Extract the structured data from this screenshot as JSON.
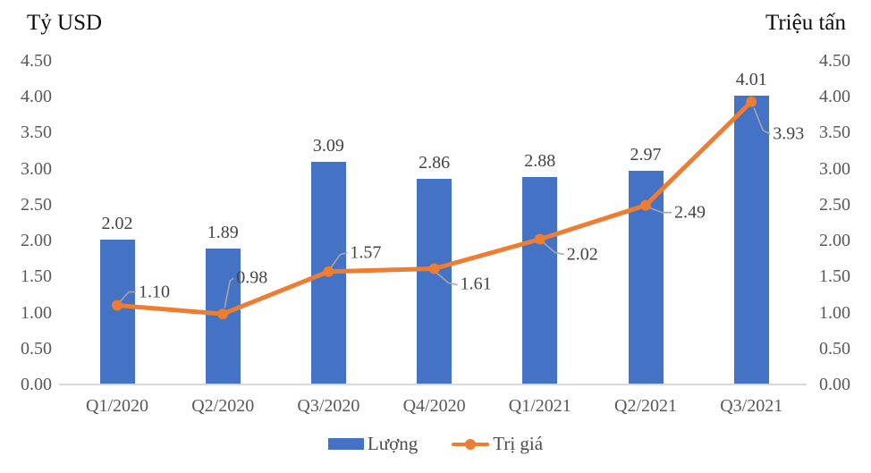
{
  "chart_data": {
    "type": "combo-bar-line",
    "title": "",
    "left_axis_title": "Tỷ USD",
    "right_axis_title": "Triệu tấn",
    "categories": [
      "Q1/2020",
      "Q2/2020",
      "Q3/2020",
      "Q4/2020",
      "Q1/2021",
      "Q2/2021",
      "Q3/2021"
    ],
    "series": [
      {
        "name": "Lượng",
        "type": "bar",
        "values": [
          2.02,
          1.89,
          3.09,
          2.86,
          2.88,
          2.97,
          4.01
        ],
        "labels": [
          "2.02",
          "1.89",
          "3.09",
          "2.86",
          "2.88",
          "2.97",
          "4.01"
        ],
        "color": "#4472C4"
      },
      {
        "name": "Trị giá",
        "type": "line",
        "values": [
          1.1,
          0.98,
          1.57,
          1.61,
          2.02,
          2.49,
          3.93
        ],
        "labels": [
          "1.10",
          "0.98",
          "1.57",
          "1.61",
          "2.02",
          "2.49",
          "3.93"
        ],
        "color": "#ED7D31"
      }
    ],
    "ylim": [
      0,
      4.5
    ],
    "yticks_left": [
      "4.50",
      "4.00",
      "3.50",
      "3.00",
      "2.50",
      "2.00",
      "1.50",
      "1.00",
      "0.50",
      "0.00"
    ],
    "yticks_right": [
      "4.50",
      "4.00",
      "3.50",
      "3.00",
      "2.50",
      "2.00",
      "1.50",
      "1.00",
      "0.50",
      "0.00"
    ],
    "grid": false,
    "legend_position": "bottom",
    "colors": {
      "bar": "#4472C4",
      "line": "#ED7D31",
      "axis_line": "#D9D9D9",
      "tick_label": "#595959",
      "data_label": "#444444",
      "leader_line": "#A6A6A6"
    }
  }
}
